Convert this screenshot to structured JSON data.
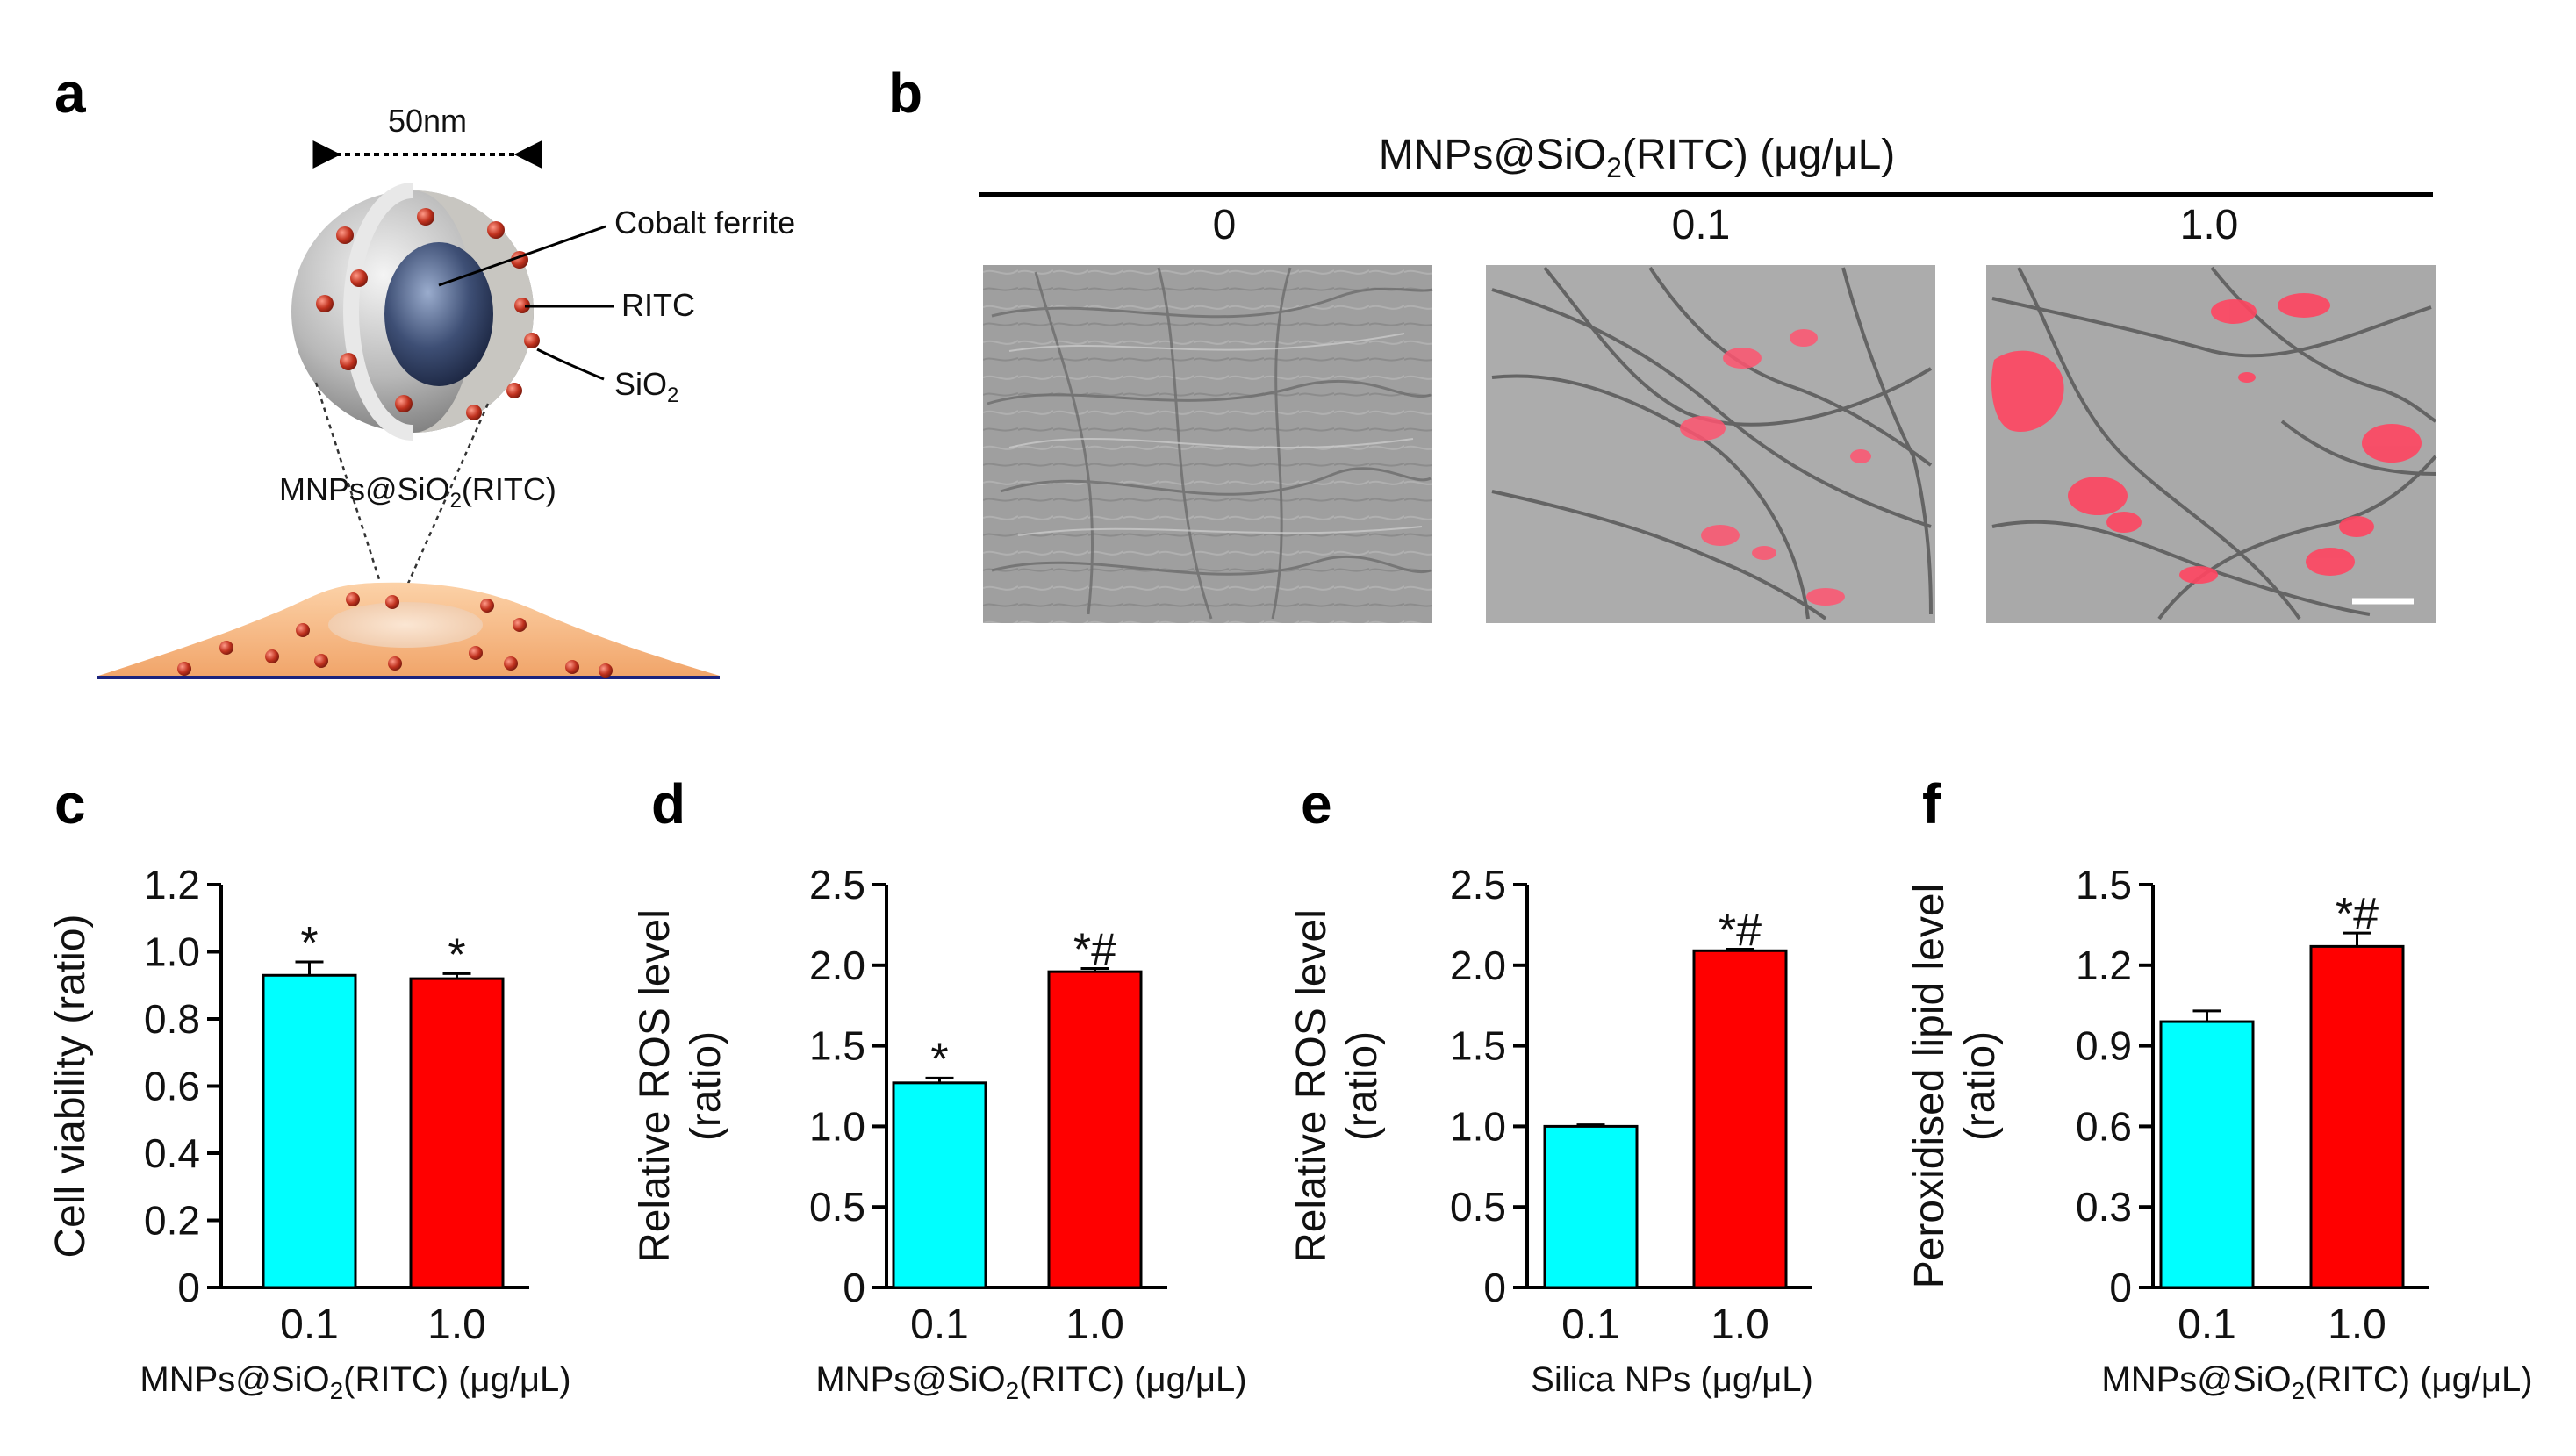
{
  "panels": {
    "a": "a",
    "b": "b",
    "c": "c",
    "d": "d",
    "e": "e",
    "f": "f"
  },
  "panel_a": {
    "scale_label": "50nm",
    "labels": {
      "core": "Cobalt ferrite",
      "dye": "RITC",
      "shell_base": "SiO",
      "shell_sub": "2",
      "particle_base": "MNPs@SiO",
      "particle_sub": "2",
      "particle_tail": "(RITC)"
    }
  },
  "panel_b": {
    "header_base": "MNPs@SiO",
    "header_sub": "2",
    "header_tail": "(RITC) (μg/μL)",
    "concentrations": [
      "0",
      "0.1",
      "1.0"
    ]
  },
  "chart_data": [
    {
      "type": "bar",
      "panel": "c",
      "categories": [
        "0.1",
        "1.0"
      ],
      "values": [
        0.93,
        0.92
      ],
      "errors": [
        0.04,
        0.015
      ],
      "annotations": [
        "*",
        "*"
      ],
      "colors": [
        "#00FFFF",
        "#FF0000"
      ],
      "ylabel": "Cell viability (ratio)",
      "xlabel": "MNPs@SiO2(RITC) (μg/μL)",
      "xlabel_parts": [
        "MNPs@SiO",
        "2",
        "(RITC) (μg/μL)"
      ],
      "yticks": [
        "0",
        "0.2",
        "0.4",
        "0.6",
        "0.8",
        "1.0",
        "1.2"
      ],
      "ylim": [
        0,
        1.2
      ]
    },
    {
      "type": "bar",
      "panel": "d",
      "categories": [
        "0.1",
        "1.0"
      ],
      "values": [
        1.27,
        1.96
      ],
      "errors": [
        0.03,
        0.02
      ],
      "annotations": [
        "*",
        "*#"
      ],
      "colors": [
        "#00FFFF",
        "#FF0000"
      ],
      "ylabel_lines": [
        "Relative ROS level",
        "(ratio)"
      ],
      "xlabel": "MNPs@SiO2(RITC) (μg/μL)",
      "xlabel_parts": [
        "MNPs@SiO",
        "2",
        "(RITC) (μg/μL)"
      ],
      "yticks": [
        "0",
        "0.5",
        "1.0",
        "1.5",
        "2.0",
        "2.5"
      ],
      "ylim": [
        0,
        2.5
      ]
    },
    {
      "type": "bar",
      "panel": "e",
      "categories": [
        "0.1",
        "1.0"
      ],
      "values": [
        1.0,
        2.09
      ],
      "errors": [
        0.01,
        0.01
      ],
      "annotations": [
        "",
        "*#"
      ],
      "colors": [
        "#00FFFF",
        "#FF0000"
      ],
      "ylabel_lines": [
        "Relative ROS level",
        "(ratio)"
      ],
      "xlabel": "Silica NPs (μg/μL)",
      "xlabel_parts": [
        "Silica NPs (μg/μL)",
        "",
        ""
      ],
      "yticks": [
        "0",
        "0.5",
        "1.0",
        "1.5",
        "2.0",
        "2.5"
      ],
      "ylim": [
        0,
        2.5
      ]
    },
    {
      "type": "bar",
      "panel": "f",
      "categories": [
        "0.1",
        "1.0"
      ],
      "values": [
        0.99,
        1.27
      ],
      "errors": [
        0.04,
        0.05
      ],
      "annotations": [
        "",
        "*#"
      ],
      "colors": [
        "#00FFFF",
        "#FF0000"
      ],
      "ylabel_lines": [
        "Peroxidised lipid level",
        "(ratio)"
      ],
      "xlabel": "MNPs@SiO2(RITC) (μg/μL)",
      "xlabel_parts": [
        "MNPs@SiO",
        "2",
        "(RITC) (μg/μL)"
      ],
      "yticks": [
        "0",
        "0.3",
        "0.6",
        "0.9",
        "1.2",
        "1.5"
      ],
      "ylim": [
        0,
        1.5
      ]
    }
  ]
}
